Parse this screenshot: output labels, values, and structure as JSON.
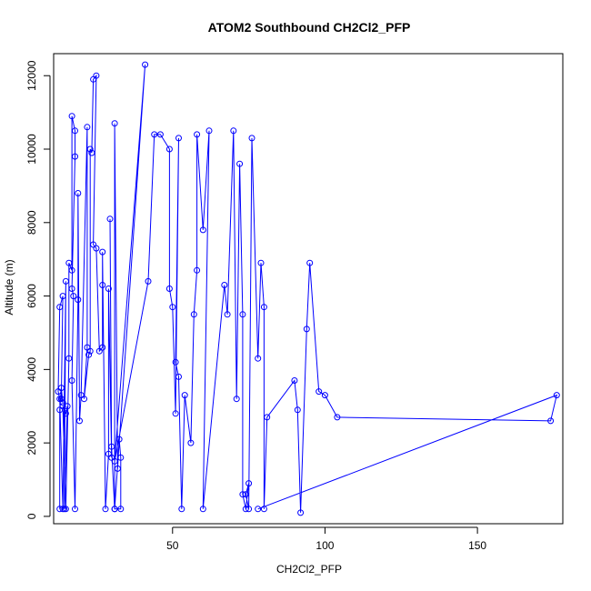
{
  "chart_data": {
    "type": "line",
    "title": "ATOM2 Southbound CH2Cl2_PFP",
    "xlabel": "CH2Cl2_PFP",
    "ylabel": "Altitude (m)",
    "xlim": [
      11,
      178
    ],
    "ylim": [
      -200,
      12600
    ],
    "xticks": [
      50,
      100,
      150
    ],
    "yticks": [
      0,
      2000,
      4000,
      6000,
      8000,
      10000,
      12000
    ],
    "xtick_labels": [
      "50",
      "100",
      "150"
    ],
    "ytick_labels": [
      "0",
      "2000",
      "4000",
      "6000",
      "8000",
      "10000",
      "12000"
    ],
    "grid": false,
    "legend": "none",
    "colors": {
      "series": "#0000ff",
      "axis": "#000000"
    },
    "series": [
      {
        "points": [
          [
            13,
            200
          ],
          [
            13,
            2900
          ],
          [
            13.5,
            3500
          ],
          [
            14,
            3100
          ],
          [
            13.5,
            3200
          ],
          [
            14,
            6000
          ],
          [
            13,
            5700
          ],
          [
            12.5,
            3400
          ],
          [
            13,
            3200
          ],
          [
            14,
            200
          ],
          [
            15,
            6400
          ],
          [
            14.5,
            200
          ],
          [
            15.5,
            3000
          ],
          [
            15,
            2800
          ],
          [
            14,
            3000
          ],
          [
            15,
            200
          ],
          [
            16,
            4300
          ],
          [
            16,
            6900
          ],
          [
            17,
            6700
          ],
          [
            17,
            10900
          ],
          [
            18,
            10500
          ],
          [
            18,
            9800
          ],
          [
            17,
            6200
          ],
          [
            17.5,
            6000
          ],
          [
            17,
            3700
          ],
          [
            18,
            200
          ],
          [
            19,
            5900
          ],
          [
            19,
            8800
          ],
          [
            19.5,
            2600
          ],
          [
            20,
            3300
          ],
          [
            22,
            10600
          ],
          [
            22,
            4600
          ],
          [
            21,
            3200
          ],
          [
            22.5,
            4400
          ],
          [
            23,
            4500
          ],
          [
            23,
            10000
          ],
          [
            23.5,
            9900
          ],
          [
            24,
            11900
          ],
          [
            25,
            12000
          ],
          [
            24,
            7400
          ],
          [
            25,
            7300
          ],
          [
            26,
            4500
          ],
          [
            27,
            4600
          ],
          [
            27,
            6300
          ],
          [
            27,
            7200
          ],
          [
            28,
            200
          ],
          [
            29,
            1700
          ],
          [
            29,
            6200
          ],
          [
            30,
            1600
          ],
          [
            29.5,
            8100
          ],
          [
            30,
            1900
          ],
          [
            31,
            200
          ],
          [
            31,
            10700
          ],
          [
            32,
            1300
          ],
          [
            32.5,
            2100
          ],
          [
            33,
            1600
          ],
          [
            33,
            200
          ],
          [
            31,
            200
          ],
          [
            41,
            12300
          ],
          [
            31,
            1500
          ],
          [
            42,
            6400
          ],
          [
            44,
            10400
          ],
          [
            46,
            10400
          ],
          [
            49,
            10000
          ],
          [
            49,
            6200
          ],
          [
            50,
            5700
          ],
          [
            51,
            2800
          ],
          [
            52,
            10300
          ],
          [
            51,
            4200
          ],
          [
            52,
            3800
          ],
          [
            53,
            200
          ],
          [
            54,
            3300
          ],
          [
            56,
            2000
          ],
          [
            57,
            5500
          ],
          [
            58,
            6700
          ],
          [
            58,
            10400
          ],
          [
            60,
            7800
          ],
          [
            62,
            10500
          ],
          [
            60,
            200
          ],
          [
            67,
            6300
          ],
          [
            68,
            5500
          ],
          [
            70,
            10500
          ],
          [
            71,
            3200
          ],
          [
            72,
            9600
          ],
          [
            73,
            5500
          ],
          [
            73,
            600
          ],
          [
            74,
            200
          ],
          [
            75,
            900
          ],
          [
            74,
            600
          ],
          [
            75,
            200
          ],
          [
            76,
            10300
          ],
          [
            78,
            4300
          ],
          [
            79,
            6900
          ],
          [
            80,
            5700
          ],
          [
            80,
            200
          ],
          [
            81,
            2700
          ],
          [
            90,
            3700
          ],
          [
            91,
            2900
          ],
          [
            92,
            100
          ],
          [
            94,
            5100
          ],
          [
            95,
            6900
          ],
          [
            98,
            3400
          ],
          [
            100,
            3300
          ],
          [
            104,
            2700
          ],
          [
            174,
            2600
          ],
          [
            176,
            3300
          ],
          [
            78,
            200
          ]
        ]
      }
    ]
  }
}
